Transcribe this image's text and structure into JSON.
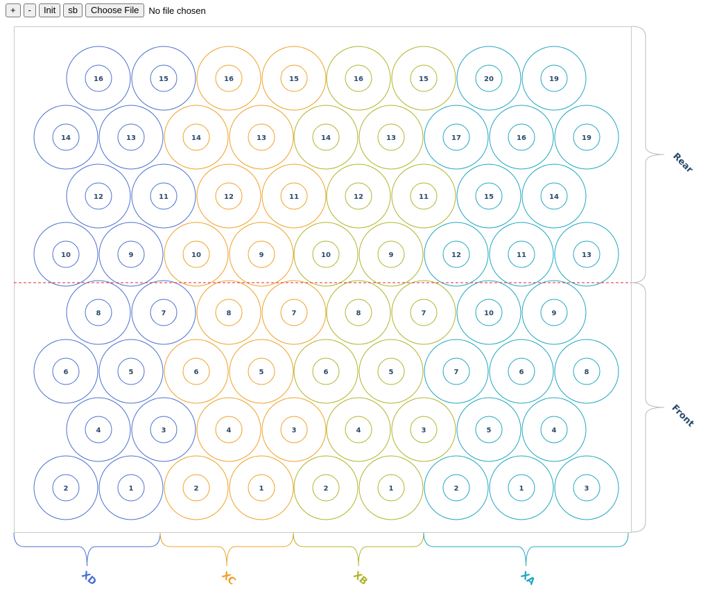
{
  "toolbar": {
    "plus_label": "+",
    "minus_label": "-",
    "init_label": "Init",
    "sb_label": "sb",
    "choose_file_label": "Choose File",
    "file_status": "No file chosen"
  },
  "diagram": {
    "divider_color": "#e0262f",
    "groups": [
      {
        "name": "XD",
        "label": "XD",
        "color": "#4a6fd0",
        "rows": [
          [
            16,
            15
          ],
          [
            14,
            13
          ],
          [
            12,
            11
          ],
          [
            10,
            9
          ],
          [
            8,
            7
          ],
          [
            6,
            5
          ],
          [
            4,
            3
          ],
          [
            2,
            1
          ]
        ]
      },
      {
        "name": "XC",
        "label": "XC",
        "color": "#f0a024",
        "rows": [
          [
            16,
            15
          ],
          [
            14,
            13
          ],
          [
            12,
            11
          ],
          [
            10,
            9
          ],
          [
            8,
            7
          ],
          [
            6,
            5
          ],
          [
            4,
            3
          ],
          [
            2,
            1
          ]
        ]
      },
      {
        "name": "XB",
        "label": "XB",
        "color": "#b0b428",
        "rows": [
          [
            16,
            15
          ],
          [
            14,
            13
          ],
          [
            12,
            11
          ],
          [
            10,
            9
          ],
          [
            8,
            7
          ],
          [
            6,
            5
          ],
          [
            4,
            3
          ],
          [
            2,
            1
          ]
        ]
      },
      {
        "name": "XA",
        "label": "XA",
        "color": "#1ea6c0",
        "rows": [
          [
            20,
            19
          ],
          [
            17,
            16,
            19
          ],
          [
            15,
            14
          ],
          [
            12,
            11,
            13
          ],
          [
            10,
            9
          ],
          [
            7,
            6,
            8
          ],
          [
            5,
            4
          ],
          [
            2,
            1,
            3
          ]
        ]
      }
    ],
    "regions": [
      {
        "name": "rear",
        "label": "Rear"
      },
      {
        "name": "front",
        "label": "Front"
      }
    ]
  }
}
